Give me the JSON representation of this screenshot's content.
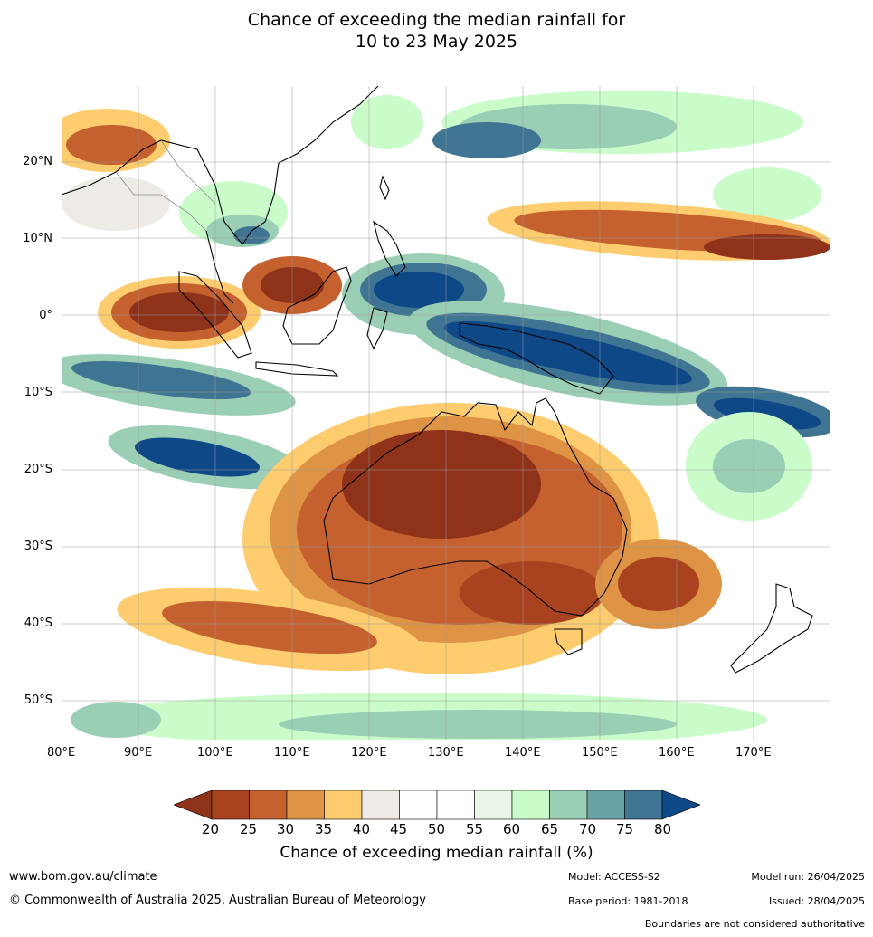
{
  "title_line1": "Chance of exceeding the median rainfall for",
  "title_line2": "10 to 23 May 2025",
  "map": {
    "lat_labels": [
      "20°N",
      "10°N",
      "0°",
      "10°S",
      "20°S",
      "30°S",
      "40°S",
      "50°S"
    ],
    "lon_labels": [
      "80°E",
      "90°E",
      "100°E",
      "110°E",
      "120°E",
      "130°E",
      "140°E",
      "150°E",
      "160°E",
      "170°E"
    ],
    "land_color": "#1b1b1b",
    "border_color": "#888888"
  },
  "legend": {
    "title": "Chance of exceeding median rainfall (%)",
    "ticks": [
      "20",
      "25",
      "30",
      "35",
      "40",
      "45",
      "50",
      "55",
      "60",
      "65",
      "70",
      "75",
      "80"
    ],
    "colors": [
      "#8e3219",
      "#a9431f",
      "#c4612f",
      "#de9345",
      "#fdcc6e",
      "#eeebe6",
      "#ffffff",
      "#ffffff",
      "#e9f6e8",
      "#c9fcc9",
      "#9acfb6",
      "#6aa3a5",
      "#3f7493",
      "#0f4886"
    ]
  },
  "footer": {
    "website": "www.bom.gov.au/climate",
    "copyright": "© Commonwealth of Australia 2025, Australian Bureau of Meteorology",
    "model": "Model: ACCESS-S2",
    "base_period": "Base period: 1981-2018",
    "model_run": "Model run: 26/04/2025",
    "issued": "Issued: 28/04/2025",
    "disclaimer": "Boundaries are not considered authoritative"
  }
}
